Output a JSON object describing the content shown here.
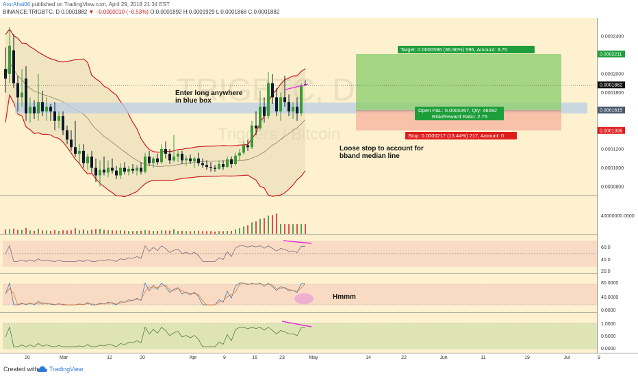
{
  "header": {
    "user": "ArorAhai06",
    "published": " published on TradingView.com, April 29, 2018 21:34 EST",
    "symbol_line": "BINANCE:TRIGBTC, D",
    "last": "0.0001882",
    "change_text": "−0.0000010 (−0.53%)",
    "ohlc": "O:0.0001892 H:0.0001929 L:0.0001868 C:0.0001882"
  },
  "footer": {
    "created_with": "Created with",
    "brand": "TradingView"
  },
  "colors": {
    "main_bg": "#fdf1cf",
    "bull": "#3c9a39",
    "bear": "#0b1a2a",
    "bband": "#cf1d1d",
    "sma": "#8f7f60",
    "blue_box": "#b9cde4",
    "target": "#8ed071",
    "stop": "#f7b8a2",
    "divergence": "#e032d9",
    "vol_up": "#52a04e",
    "vol_down": "#e44d4d"
  },
  "watermark": {
    "symbol": "TRIGBTC, D",
    "name": "Triggers / Bitcoin"
  },
  "annotations": {
    "enter": [
      "Enter long anywhere",
      "in blue box"
    ],
    "stop_note": [
      "Loose stop to account for",
      "bband median line"
    ],
    "hmmm": "Hmmm"
  },
  "position": {
    "target_label": "Target: 0.0000596 (36.90%) 596, Amount: 3.75",
    "pnl_label": [
      "Open P&L: 0.0000267, Qty: 46082",
      "Risk/Reward Ratio: 2.75"
    ],
    "stop_label": "Stop: 0.0000217 (13.44%) 217, Amount: 0",
    "entry": 0.0001615,
    "target": 0.0002211,
    "stop": 0.0001398
  },
  "chart_data": {
    "type": "candlestick",
    "x_labels": [
      "20",
      "Mar",
      "12",
      "20",
      "Apr",
      "9",
      "16",
      "23",
      "May",
      "14",
      "22",
      "Jun",
      "11",
      "19",
      "Jul",
      "9"
    ],
    "price_axis": {
      "ticks": [
        "0.0002400",
        "0.0002000",
        "0.0001800",
        "0.0001200",
        "0.0001000",
        "0.0000800"
      ],
      "badges": [
        {
          "text": "0.0002211",
          "value": 0.0002211,
          "color": "#1e9e3a"
        },
        {
          "text": "0.0001882",
          "value": 0.0001882,
          "color": "#111111"
        },
        {
          "text": "0.0001615",
          "value": 0.0001615,
          "color": "#4a5a6e"
        },
        {
          "text": "0.0001398",
          "value": 0.0001398,
          "color": "#e01d1d"
        }
      ]
    },
    "volume_axis": {
      "ticks": [
        "40000000.0000"
      ]
    },
    "rsi_axis": {
      "ticks": [
        "60.0",
        "40.0",
        "20.0"
      ]
    },
    "stoch_axis": {
      "ticks": [
        "80.0000",
        "40.0000",
        "0.0000"
      ]
    },
    "osc_axis": {
      "ticks": [
        "1.0000",
        "0.5000",
        "0.0000"
      ]
    },
    "candles": [
      {
        "o": 0.000205,
        "h": 0.000228,
        "l": 0.00018,
        "c": 0.000195
      },
      {
        "o": 0.0002,
        "h": 0.00025,
        "l": 0.00019,
        "c": 0.00023
      },
      {
        "o": 0.000225,
        "h": 0.000242,
        "l": 0.000185,
        "c": 0.00019
      },
      {
        "o": 0.00019,
        "h": 0.000198,
        "l": 0.00016,
        "c": 0.000175
      },
      {
        "o": 0.000175,
        "h": 0.000205,
        "l": 0.000165,
        "c": 0.00018
      },
      {
        "o": 0.000195,
        "h": 0.000208,
        "l": 0.00015,
        "c": 0.000158
      },
      {
        "o": 0.000158,
        "h": 0.000175,
        "l": 0.000148,
        "c": 0.000165
      },
      {
        "o": 0.000165,
        "h": 0.000172,
        "l": 0.000152,
        "c": 0.000158
      },
      {
        "o": 0.000158,
        "h": 0.0002,
        "l": 0.00015,
        "c": 0.00017
      },
      {
        "o": 0.00017,
        "h": 0.000182,
        "l": 0.000155,
        "c": 0.00016
      },
      {
        "o": 0.00016,
        "h": 0.000175,
        "l": 0.00015,
        "c": 0.000165
      },
      {
        "o": 0.000165,
        "h": 0.000168,
        "l": 0.00015,
        "c": 0.00016
      },
      {
        "o": 0.00016,
        "h": 0.00017,
        "l": 0.00014,
        "c": 0.00015
      },
      {
        "o": 0.00015,
        "h": 0.00016,
        "l": 0.000142,
        "c": 0.000155
      },
      {
        "o": 0.000155,
        "h": 0.00016,
        "l": 0.000135,
        "c": 0.00014
      },
      {
        "o": 0.00014,
        "h": 0.000145,
        "l": 0.000125,
        "c": 0.00013
      },
      {
        "o": 0.00013,
        "h": 0.00014,
        "l": 0.000118,
        "c": 0.000122
      },
      {
        "o": 0.000122,
        "h": 0.00015,
        "l": 0.000112,
        "c": 0.000115
      },
      {
        "o": 0.000115,
        "h": 0.000125,
        "l": 0.000105,
        "c": 0.000118
      },
      {
        "o": 0.000118,
        "h": 0.000125,
        "l": 0.0001,
        "c": 0.000105
      },
      {
        "o": 0.000105,
        "h": 0.000115,
        "l": 9.8e-05,
        "c": 0.000112
      },
      {
        "o": 0.000112,
        "h": 0.000118,
        "l": 9.5e-05,
        "c": 0.0001
      },
      {
        "o": 0.0001,
        "h": 0.00011,
        "l": 8.5e-05,
        "c": 9.2e-05
      },
      {
        "o": 9.2e-05,
        "h": 0.000108,
        "l": 8e-05,
        "c": 9.8e-05
      },
      {
        "o": 9.8e-05,
        "h": 0.000112,
        "l": 9.2e-05,
        "c": 9.5e-05
      },
      {
        "o": 9.5e-05,
        "h": 0.000108,
        "l": 9e-05,
        "c": 0.0001
      },
      {
        "o": 0.0001,
        "h": 0.00011,
        "l": 9.4e-05,
        "c": 9.7e-05
      },
      {
        "o": 9.7e-05,
        "h": 0.000102,
        "l": 8.8e-05,
        "c": 9.2e-05
      },
      {
        "o": 9.2e-05,
        "h": 0.000105,
        "l": 8.8e-05,
        "c": 0.0001
      },
      {
        "o": 0.0001,
        "h": 0.000106,
        "l": 9.3e-05,
        "c": 9.6e-05
      },
      {
        "o": 9.6e-05,
        "h": 0.000102,
        "l": 9.2e-05,
        "c": 9.9e-05
      },
      {
        "o": 9.9e-05,
        "h": 0.000104,
        "l": 9.4e-05,
        "c": 9.7e-05
      },
      {
        "o": 9.7e-05,
        "h": 0.000103,
        "l": 9.2e-05,
        "c": 0.0001
      },
      {
        "o": 0.0001,
        "h": 0.000106,
        "l": 9.3e-05,
        "c": 9.6e-05
      },
      {
        "o": 9.6e-05,
        "h": 0.000116,
        "l": 9.4e-05,
        "c": 0.000112
      },
      {
        "o": 0.000112,
        "h": 0.000118,
        "l": 0.000102,
        "c": 0.000105
      },
      {
        "o": 0.000105,
        "h": 0.000112,
        "l": 0.0001,
        "c": 0.00011
      },
      {
        "o": 0.00011,
        "h": 0.000115,
        "l": 0.000103,
        "c": 0.000106
      },
      {
        "o": 0.000106,
        "h": 0.000125,
        "l": 0.000104,
        "c": 0.00012
      },
      {
        "o": 0.00012,
        "h": 0.000128,
        "l": 0.00011,
        "c": 0.000115
      },
      {
        "o": 0.000115,
        "h": 0.00012,
        "l": 0.000104,
        "c": 0.000108
      },
      {
        "o": 0.000108,
        "h": 0.000135,
        "l": 0.000106,
        "c": 0.000112
      },
      {
        "o": 0.000112,
        "h": 0.000118,
        "l": 0.000106,
        "c": 0.000115
      },
      {
        "o": 0.000115,
        "h": 0.000118,
        "l": 0.000104,
        "c": 0.000108
      },
      {
        "o": 0.000108,
        "h": 0.000113,
        "l": 0.000102,
        "c": 0.00011
      },
      {
        "o": 0.00011,
        "h": 0.000114,
        "l": 0.000104,
        "c": 0.000107
      },
      {
        "o": 0.000107,
        "h": 0.000112,
        "l": 0.0001,
        "c": 0.00011
      },
      {
        "o": 0.00011,
        "h": 0.000116,
        "l": 0.000102,
        "c": 0.000105
      },
      {
        "o": 0.000105,
        "h": 0.00011,
        "l": 0.0001,
        "c": 0.000103
      },
      {
        "o": 0.000103,
        "h": 0.000108,
        "l": 9.8e-05,
        "c": 0.000101
      },
      {
        "o": 0.000101,
        "h": 0.000106,
        "l": 9.6e-05,
        "c": 0.0001
      },
      {
        "o": 0.0001,
        "h": 0.000103,
        "l": 9.6e-05,
        "c": 9.9e-05
      },
      {
        "o": 9.9e-05,
        "h": 0.000108,
        "l": 9.8e-05,
        "c": 0.000104
      },
      {
        "o": 0.000104,
        "h": 0.000108,
        "l": 9.8e-05,
        "c": 0.000101
      },
      {
        "o": 0.000101,
        "h": 0.000112,
        "l": 0.0001,
        "c": 0.000109
      },
      {
        "o": 0.000109,
        "h": 0.000112,
        "l": 0.0001,
        "c": 0.000104
      },
      {
        "o": 0.000104,
        "h": 0.000116,
        "l": 0.000102,
        "c": 0.000113
      },
      {
        "o": 0.000113,
        "h": 0.00012,
        "l": 0.000108,
        "c": 0.000116
      },
      {
        "o": 0.000116,
        "h": 0.000128,
        "l": 0.000114,
        "c": 0.000124
      },
      {
        "o": 0.000124,
        "h": 0.00013,
        "l": 0.000118,
        "c": 0.000122
      },
      {
        "o": 0.000122,
        "h": 0.00015,
        "l": 0.00012,
        "c": 0.000145
      },
      {
        "o": 0.000145,
        "h": 0.00016,
        "l": 0.000135,
        "c": 0.000142
      },
      {
        "o": 0.000142,
        "h": 0.000182,
        "l": 0.00014,
        "c": 0.000165
      },
      {
        "o": 0.000165,
        "h": 0.000175,
        "l": 0.000148,
        "c": 0.000155
      },
      {
        "o": 0.000155,
        "h": 0.000202,
        "l": 0.000152,
        "c": 0.00019
      },
      {
        "o": 0.00019,
        "h": 0.0002,
        "l": 0.000168,
        "c": 0.000175
      },
      {
        "o": 0.000175,
        "h": 0.000185,
        "l": 0.000155,
        "c": 0.00016
      },
      {
        "o": 0.00016,
        "h": 0.00018,
        "l": 0.00015,
        "c": 0.000175
      },
      {
        "o": 0.000175,
        "h": 0.000198,
        "l": 0.000165,
        "c": 0.00017
      },
      {
        "o": 0.00017,
        "h": 0.000178,
        "l": 0.000155,
        "c": 0.00016
      },
      {
        "o": 0.00016,
        "h": 0.00017,
        "l": 0.000152,
        "c": 0.000165
      },
      {
        "o": 0.000165,
        "h": 0.000175,
        "l": 0.00015,
        "c": 0.000158
      },
      {
        "o": 0.000158,
        "h": 0.00019,
        "l": 0.000155,
        "c": 0.000188
      },
      {
        "o": 0.000189,
        "h": 0.000193,
        "l": 0.000187,
        "c": 0.000188
      }
    ]
  }
}
